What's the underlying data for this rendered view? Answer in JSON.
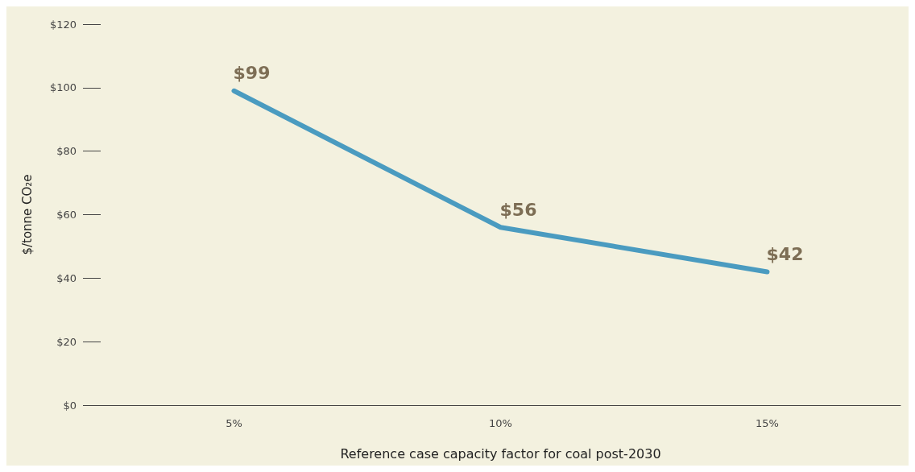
{
  "chart_data": {
    "type": "line",
    "xlabel": "Reference case capacity factor for coal post-2030",
    "ylabel": "$/tonne CO₂e",
    "categories": [
      "5%",
      "10%",
      "15%"
    ],
    "series": [
      {
        "color": "#4a9bc0",
        "values": [
          99,
          56,
          42
        ],
        "value_labels": [
          "$99",
          "$56",
          "$42"
        ]
      }
    ],
    "ylim": [
      0,
      120
    ],
    "yticks": [
      {
        "value": 0,
        "label": "$0"
      },
      {
        "value": 20,
        "label": "$20"
      },
      {
        "value": 40,
        "label": "$40"
      },
      {
        "value": 60,
        "label": "$60"
      },
      {
        "value": 80,
        "label": "$80"
      },
      {
        "value": 100,
        "label": "$100"
      },
      {
        "value": 120,
        "label": "$120"
      }
    ],
    "grid": false,
    "marker": "none",
    "line_style": "solid"
  }
}
